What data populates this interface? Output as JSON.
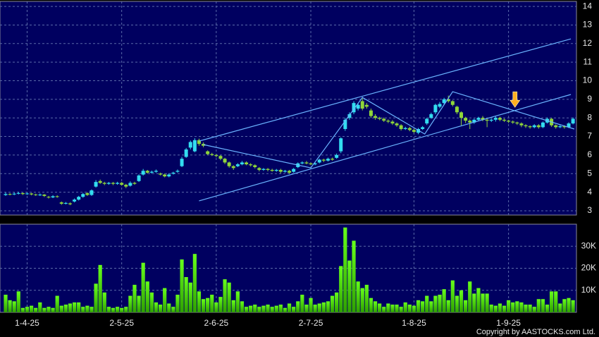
{
  "chart_data": [
    {
      "type": "candlestick",
      "up_color": "#33ddf0",
      "down_color": "#8fd63a",
      "grid": true,
      "xlim": [
        -1.31,
        132.8
      ],
      "ylim": [
        2.77,
        14.27
      ],
      "yticks": [
        3,
        4,
        5,
        6,
        7,
        8,
        9,
        10,
        11,
        12,
        13,
        14
      ],
      "open": [
        3.85,
        3.9,
        3.88,
        3.92,
        3.95,
        3.9,
        3.93,
        3.88,
        3.85,
        3.87,
        3.75,
        3.72,
        3.78,
        3.45,
        3.38,
        3.4,
        3.5,
        3.6,
        3.75,
        3.95,
        3.85,
        4.3,
        4.6,
        4.5,
        4.45,
        4.5,
        4.45,
        4.5,
        4.4,
        4.35,
        4.5,
        4.6,
        4.95,
        5.15,
        5.05,
        5.1,
        5.0,
        4.95,
        4.85,
        5.0,
        5.1,
        5.4,
        5.9,
        6.4,
        6.2,
        6.8,
        6.6,
        6.2,
        6.05,
        6.0,
        5.95,
        5.8,
        5.6,
        5.4,
        5.4,
        5.5,
        5.6,
        5.5,
        5.45,
        5.3,
        5.2,
        5.25,
        5.2,
        5.15,
        5.2,
        5.1,
        5.15,
        5.1,
        5.35,
        5.55,
        5.6,
        5.55,
        5.5,
        5.6,
        5.75,
        5.7,
        5.8,
        5.85,
        6.2,
        7.4,
        8.0,
        8.3,
        8.5,
        8.9,
        8.7,
        8.4,
        8.1,
        8.0,
        7.95,
        7.85,
        7.8,
        7.7,
        7.6,
        7.4,
        7.45,
        7.35,
        7.2,
        7.4,
        7.7,
        8.0,
        8.3,
        8.6,
        8.8,
        9.0,
        8.9,
        8.6,
        8.3,
        8.0,
        7.85,
        7.75,
        7.9,
        8.0,
        7.9,
        7.85,
        7.9,
        8.0,
        7.9,
        7.85,
        7.8,
        7.75,
        7.7,
        7.6,
        7.55,
        7.5,
        7.6,
        7.5,
        7.75,
        7.95,
        7.6,
        7.5,
        7.55,
        7.5,
        7.7
      ],
      "high": [
        3.98,
        3.95,
        3.98,
        4.02,
        3.98,
        3.98,
        3.96,
        3.92,
        3.93,
        3.9,
        3.8,
        3.84,
        3.83,
        3.5,
        3.47,
        3.45,
        3.66,
        3.8,
        3.96,
        4.0,
        4.15,
        4.65,
        4.68,
        4.56,
        4.55,
        4.55,
        4.56,
        4.55,
        4.45,
        4.58,
        4.56,
        4.96,
        5.25,
        5.2,
        5.16,
        5.22,
        5.05,
        5.0,
        5.02,
        5.1,
        5.22,
        5.9,
        6.38,
        6.78,
        6.9,
        6.88,
        6.68,
        6.25,
        6.12,
        6.05,
        6.0,
        5.85,
        5.65,
        5.45,
        5.56,
        5.68,
        5.66,
        5.56,
        5.5,
        5.35,
        5.3,
        5.3,
        5.26,
        5.25,
        5.26,
        5.2,
        5.2,
        5.3,
        5.6,
        5.66,
        5.68,
        5.6,
        5.6,
        5.8,
        5.8,
        5.86,
        5.86,
        6.08,
        6.95,
        8.0,
        8.3,
        8.9,
        8.8,
        9.1,
        8.8,
        8.5,
        8.2,
        8.06,
        8.02,
        7.92,
        7.88,
        7.76,
        7.66,
        7.52,
        7.52,
        7.42,
        7.46,
        7.56,
        8.0,
        8.28,
        8.76,
        8.86,
        9.08,
        9.2,
        8.95,
        8.65,
        8.35,
        8.06,
        7.92,
        7.96,
        8.06,
        8.1,
        7.95,
        7.96,
        8.08,
        8.06,
        7.96,
        7.9,
        7.86,
        7.8,
        7.76,
        7.66,
        7.6,
        7.66,
        7.66,
        7.8,
        8.02,
        8.0,
        7.65,
        7.62,
        7.6,
        7.76,
        8.02
      ],
      "low": [
        3.8,
        3.83,
        3.84,
        3.88,
        3.85,
        3.86,
        3.83,
        3.8,
        3.8,
        3.74,
        3.66,
        3.68,
        3.7,
        3.32,
        3.34,
        3.3,
        3.45,
        3.55,
        3.7,
        3.8,
        3.8,
        4.25,
        4.45,
        4.38,
        4.4,
        4.38,
        4.4,
        4.35,
        4.22,
        4.3,
        4.4,
        4.55,
        4.9,
        5.0,
        5.0,
        5.05,
        4.9,
        4.8,
        4.8,
        4.95,
        5.05,
        5.35,
        5.85,
        6.3,
        6.15,
        6.5,
        6.42,
        6.0,
        5.95,
        5.88,
        5.72,
        5.52,
        5.32,
        5.2,
        5.35,
        5.45,
        5.45,
        5.38,
        5.28,
        5.12,
        5.15,
        5.12,
        5.1,
        5.1,
        5.02,
        5.05,
        4.98,
        5.05,
        5.3,
        5.5,
        5.5,
        5.45,
        5.45,
        5.55,
        5.62,
        5.65,
        5.7,
        5.8,
        6.1,
        7.3,
        7.9,
        8.2,
        8.4,
        8.4,
        8.5,
        8.0,
        7.9,
        7.88,
        7.78,
        7.72,
        7.62,
        7.52,
        7.32,
        7.35,
        7.28,
        7.18,
        7.12,
        7.35,
        7.62,
        7.95,
        8.2,
        8.52,
        8.72,
        8.82,
        8.62,
        8.2,
        7.6,
        7.72,
        7.4,
        7.68,
        7.82,
        7.82,
        7.5,
        7.78,
        7.8,
        7.82,
        7.78,
        7.72,
        7.68,
        7.62,
        7.5,
        7.46,
        7.42,
        7.44,
        7.42,
        7.45,
        7.7,
        7.52,
        7.42,
        7.45,
        7.42,
        7.45,
        7.65
      ],
      "close": [
        3.9,
        3.88,
        3.92,
        3.95,
        3.9,
        3.93,
        3.88,
        3.85,
        3.87,
        3.8,
        3.72,
        3.78,
        3.76,
        3.38,
        3.42,
        3.35,
        3.6,
        3.75,
        3.9,
        3.85,
        4.1,
        4.55,
        4.5,
        4.45,
        4.5,
        4.45,
        4.5,
        4.4,
        4.3,
        4.5,
        4.45,
        4.9,
        5.15,
        5.05,
        5.1,
        5.15,
        4.95,
        4.85,
        4.95,
        5.05,
        5.15,
        5.8,
        6.3,
        6.7,
        6.8,
        6.6,
        6.5,
        6.05,
        6.0,
        5.95,
        5.8,
        5.6,
        5.4,
        5.3,
        5.5,
        5.6,
        5.5,
        5.45,
        5.35,
        5.2,
        5.25,
        5.2,
        5.15,
        5.2,
        5.1,
        5.15,
        5.05,
        5.25,
        5.55,
        5.6,
        5.55,
        5.5,
        5.55,
        5.75,
        5.7,
        5.8,
        5.75,
        6.0,
        6.9,
        7.9,
        8.2,
        8.8,
        8.7,
        8.5,
        8.6,
        8.1,
        8.0,
        7.95,
        7.85,
        7.8,
        7.7,
        7.6,
        7.4,
        7.45,
        7.35,
        7.25,
        7.4,
        7.5,
        7.95,
        8.2,
        8.7,
        8.75,
        9.0,
        8.9,
        8.7,
        8.3,
        8.0,
        7.85,
        7.75,
        7.9,
        8.0,
        7.9,
        7.85,
        7.9,
        8.0,
        7.9,
        7.85,
        7.8,
        7.75,
        7.7,
        7.6,
        7.55,
        7.5,
        7.6,
        7.5,
        7.75,
        7.95,
        7.6,
        7.5,
        7.55,
        7.5,
        7.7,
        7.95
      ],
      "line_color": "#6ab4ff",
      "trendlines": [
        {
          "x": [
            45,
            131.5
          ],
          "y": [
            6.75,
            12.25
          ]
        },
        {
          "x": [
            45,
            131.5
          ],
          "y": [
            3.53,
            9.26
          ]
        },
        {
          "x": [
            46,
            71,
            83,
            97.5,
            104,
            132.3
          ],
          "y": [
            6.56,
            5.31,
            9.1,
            7.13,
            9.41,
            7.4
          ]
        }
      ],
      "marker": {
        "x": 118.5,
        "y": 8.57,
        "color": "#ffb020"
      }
    },
    {
      "type": "bar",
      "color": "#66ff1a",
      "grid": true,
      "xlim": [
        -1.31,
        132.8
      ],
      "ylim": [
        0,
        40000
      ],
      "yticks": [
        {
          "value": 10000,
          "label": "10K"
        },
        {
          "value": 20000,
          "label": "20K"
        },
        {
          "value": 30000,
          "label": "30K"
        }
      ],
      "xticks": [
        {
          "value": 5,
          "label": "1-4-25"
        },
        {
          "value": 27,
          "label": "2-5-25"
        },
        {
          "value": 49,
          "label": "2-6-25"
        },
        {
          "value": 71,
          "label": "2-7-25"
        },
        {
          "value": 95,
          "label": "1-8-25"
        },
        {
          "value": 117,
          "label": "1-9-25"
        }
      ],
      "values": [
        8000,
        5500,
        5000,
        9500,
        2000,
        2500,
        3000,
        2000,
        4500,
        2000,
        2500,
        2000,
        7500,
        3000,
        3500,
        4000,
        4500,
        4500,
        2500,
        3000,
        2500,
        13000,
        21500,
        9000,
        2500,
        2000,
        2500,
        2000,
        2500,
        7500,
        12500,
        7500,
        22500,
        14000,
        9000,
        4500,
        3500,
        11000,
        4000,
        2500,
        8000,
        24000,
        16000,
        13500,
        26500,
        9500,
        6000,
        6500,
        8000,
        4500,
        7000,
        15000,
        13500,
        5500,
        9500,
        5000,
        2500,
        3000,
        3500,
        2500,
        3000,
        3500,
        2500,
        3000,
        3500,
        2000,
        4000,
        2500,
        5000,
        8000,
        3500,
        6500,
        3500,
        4000,
        4500,
        5000,
        7500,
        9000,
        21000,
        38500,
        23500,
        32500,
        14000,
        11000,
        12500,
        6500,
        5000,
        4000,
        2500,
        4000,
        3500,
        3500,
        2500,
        4500,
        3500,
        3000,
        5500,
        5000,
        7500,
        5000,
        7500,
        8000,
        10500,
        5500,
        14500,
        7500,
        10000,
        5500,
        14000,
        8500,
        11000,
        8500,
        8500,
        3500,
        3000,
        4000,
        3000,
        5500,
        4500,
        5000,
        4500,
        3500,
        3500,
        2500,
        6000,
        6000,
        3500,
        9500,
        9500,
        4000,
        6000,
        6500,
        5500
      ]
    }
  ],
  "footer": "Copyright by AASTOCKS.com Ltd."
}
